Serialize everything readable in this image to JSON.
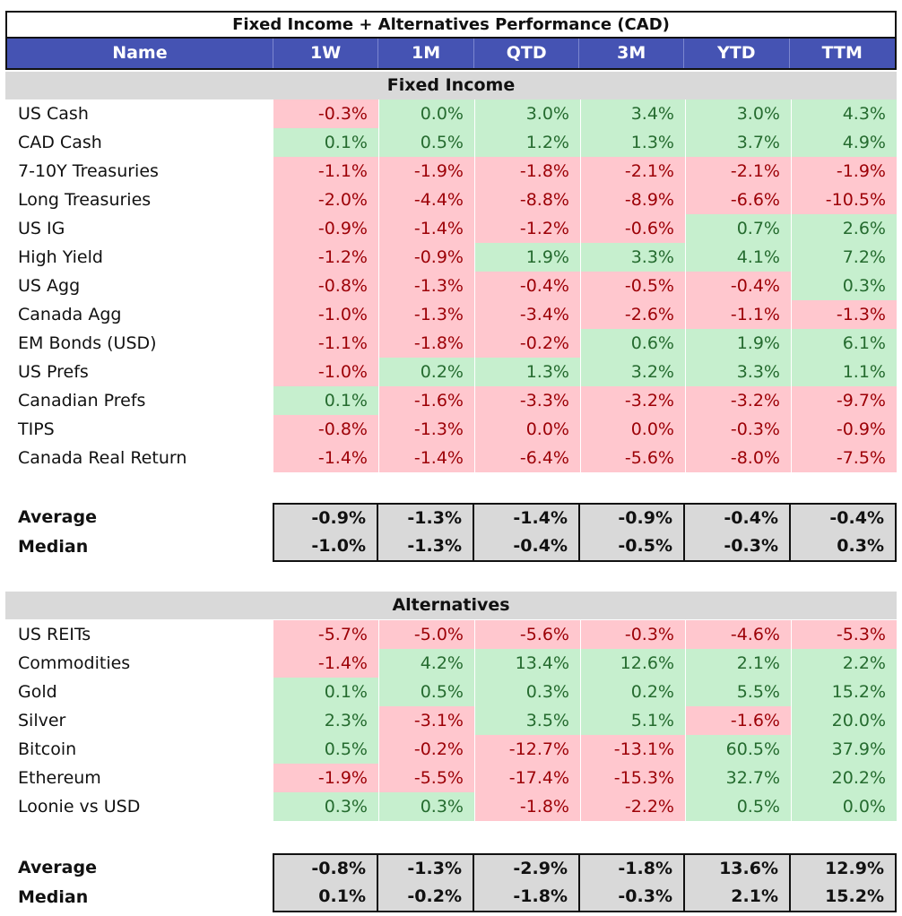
{
  "title": "Fixed Income + Alternatives Performance (CAD)",
  "columns": [
    "Name",
    "1W",
    "1M",
    "QTD",
    "3M",
    "YTD",
    "TTM"
  ],
  "sections": [
    {
      "label": "Fixed Income",
      "rows": [
        {
          "name": "US Cash",
          "values": [
            "-0.3%",
            "0.0%",
            "3.0%",
            "3.4%",
            "3.0%",
            "4.3%"
          ]
        },
        {
          "name": "CAD Cash",
          "values": [
            "0.1%",
            "0.5%",
            "1.2%",
            "1.3%",
            "3.7%",
            "4.9%"
          ]
        },
        {
          "name": "7-10Y Treasuries",
          "values": [
            "-1.1%",
            "-1.9%",
            "-1.8%",
            "-2.1%",
            "-2.1%",
            "-1.9%"
          ]
        },
        {
          "name": "Long Treasuries",
          "values": [
            "-2.0%",
            "-4.4%",
            "-8.8%",
            "-8.9%",
            "-6.6%",
            "-10.5%"
          ]
        },
        {
          "name": "US IG",
          "values": [
            "-0.9%",
            "-1.4%",
            "-1.2%",
            "-0.6%",
            "0.7%",
            "2.6%"
          ]
        },
        {
          "name": "High Yield",
          "values": [
            "-1.2%",
            "-0.9%",
            "1.9%",
            "3.3%",
            "4.1%",
            "7.2%"
          ]
        },
        {
          "name": "US Agg",
          "values": [
            "-0.8%",
            "-1.3%",
            "-0.4%",
            "-0.5%",
            "-0.4%",
            "0.3%"
          ]
        },
        {
          "name": "Canada Agg",
          "values": [
            "-1.0%",
            "-1.3%",
            "-3.4%",
            "-2.6%",
            "-1.1%",
            "-1.3%"
          ]
        },
        {
          "name": "EM Bonds (USD)",
          "values": [
            "-1.1%",
            "-1.8%",
            "-0.2%",
            "0.6%",
            "1.9%",
            "6.1%"
          ]
        },
        {
          "name": "US Prefs",
          "values": [
            "-1.0%",
            "0.2%",
            "1.3%",
            "3.2%",
            "3.3%",
            "1.1%"
          ]
        },
        {
          "name": "Canadian Prefs",
          "values": [
            "0.1%",
            "-1.6%",
            "-3.3%",
            "-3.2%",
            "-3.2%",
            "-9.7%"
          ]
        },
        {
          "name": "TIPS",
          "values": [
            "-0.8%",
            "-1.3%",
            "0.0%",
            "0.0%",
            "-0.3%",
            "-0.9%"
          ]
        },
        {
          "name": "Canada Real Return",
          "values": [
            "-1.4%",
            "-1.4%",
            "-6.4%",
            "-5.6%",
            "-8.0%",
            "-7.5%"
          ]
        }
      ],
      "signs": [
        [
          "n",
          "p",
          "p",
          "p",
          "p",
          "p"
        ],
        [
          "p",
          "p",
          "p",
          "p",
          "p",
          "p"
        ],
        [
          "n",
          "n",
          "n",
          "n",
          "n",
          "n"
        ],
        [
          "n",
          "n",
          "n",
          "n",
          "n",
          "n"
        ],
        [
          "n",
          "n",
          "n",
          "n",
          "p",
          "p"
        ],
        [
          "n",
          "n",
          "p",
          "p",
          "p",
          "p"
        ],
        [
          "n",
          "n",
          "n",
          "n",
          "n",
          "p"
        ],
        [
          "n",
          "n",
          "n",
          "n",
          "n",
          "n"
        ],
        [
          "n",
          "n",
          "n",
          "p",
          "p",
          "p"
        ],
        [
          "n",
          "p",
          "p",
          "p",
          "p",
          "p"
        ],
        [
          "p",
          "n",
          "n",
          "n",
          "n",
          "n"
        ],
        [
          "n",
          "n",
          "n",
          "n",
          "n",
          "n"
        ],
        [
          "n",
          "n",
          "n",
          "n",
          "n",
          "n"
        ]
      ],
      "stats": [
        {
          "name": "Average",
          "values": [
            "-0.9%",
            "-1.3%",
            "-1.4%",
            "-0.9%",
            "-0.4%",
            "-0.4%"
          ]
        },
        {
          "name": "Median",
          "values": [
            "-1.0%",
            "-1.3%",
            "-0.4%",
            "-0.5%",
            "-0.3%",
            "0.3%"
          ]
        }
      ]
    },
    {
      "label": "Alternatives",
      "rows": [
        {
          "name": "US REITs",
          "values": [
            "-5.7%",
            "-5.0%",
            "-5.6%",
            "-0.3%",
            "-4.6%",
            "-5.3%"
          ]
        },
        {
          "name": "Commodities",
          "values": [
            "-1.4%",
            "4.2%",
            "13.4%",
            "12.6%",
            "2.1%",
            "2.2%"
          ]
        },
        {
          "name": "Gold",
          "values": [
            "0.1%",
            "0.5%",
            "0.3%",
            "0.2%",
            "5.5%",
            "15.2%"
          ]
        },
        {
          "name": "Silver",
          "values": [
            "2.3%",
            "-3.1%",
            "3.5%",
            "5.1%",
            "-1.6%",
            "20.0%"
          ]
        },
        {
          "name": "Bitcoin",
          "values": [
            "0.5%",
            "-0.2%",
            "-12.7%",
            "-13.1%",
            "60.5%",
            "37.9%"
          ]
        },
        {
          "name": "Ethereum",
          "values": [
            "-1.9%",
            "-5.5%",
            "-17.4%",
            "-15.3%",
            "32.7%",
            "20.2%"
          ]
        },
        {
          "name": "Loonie vs USD",
          "values": [
            "0.3%",
            "0.3%",
            "-1.8%",
            "-2.2%",
            "0.5%",
            "0.0%"
          ]
        }
      ],
      "signs": [
        [
          "n",
          "n",
          "n",
          "n",
          "n",
          "n"
        ],
        [
          "n",
          "p",
          "p",
          "p",
          "p",
          "p"
        ],
        [
          "p",
          "p",
          "p",
          "p",
          "p",
          "p"
        ],
        [
          "p",
          "n",
          "p",
          "p",
          "n",
          "p"
        ],
        [
          "p",
          "n",
          "n",
          "n",
          "p",
          "p"
        ],
        [
          "n",
          "n",
          "n",
          "n",
          "p",
          "p"
        ],
        [
          "p",
          "p",
          "n",
          "n",
          "p",
          "p"
        ]
      ],
      "stats": [
        {
          "name": "Average",
          "values": [
            "-0.8%",
            "-1.3%",
            "-2.9%",
            "-1.8%",
            "13.6%",
            "12.9%"
          ]
        },
        {
          "name": "Median",
          "values": [
            "0.1%",
            "-0.2%",
            "-1.8%",
            "-0.3%",
            "2.1%",
            "15.2%"
          ]
        }
      ]
    }
  ],
  "colors": {
    "header_bg": "#4553b3",
    "positive_bg": "#c6efce",
    "positive_text": "#256b2f",
    "negative_bg": "#ffc7ce",
    "negative_text": "#9c0006",
    "section_bg": "#d9d9d9"
  }
}
